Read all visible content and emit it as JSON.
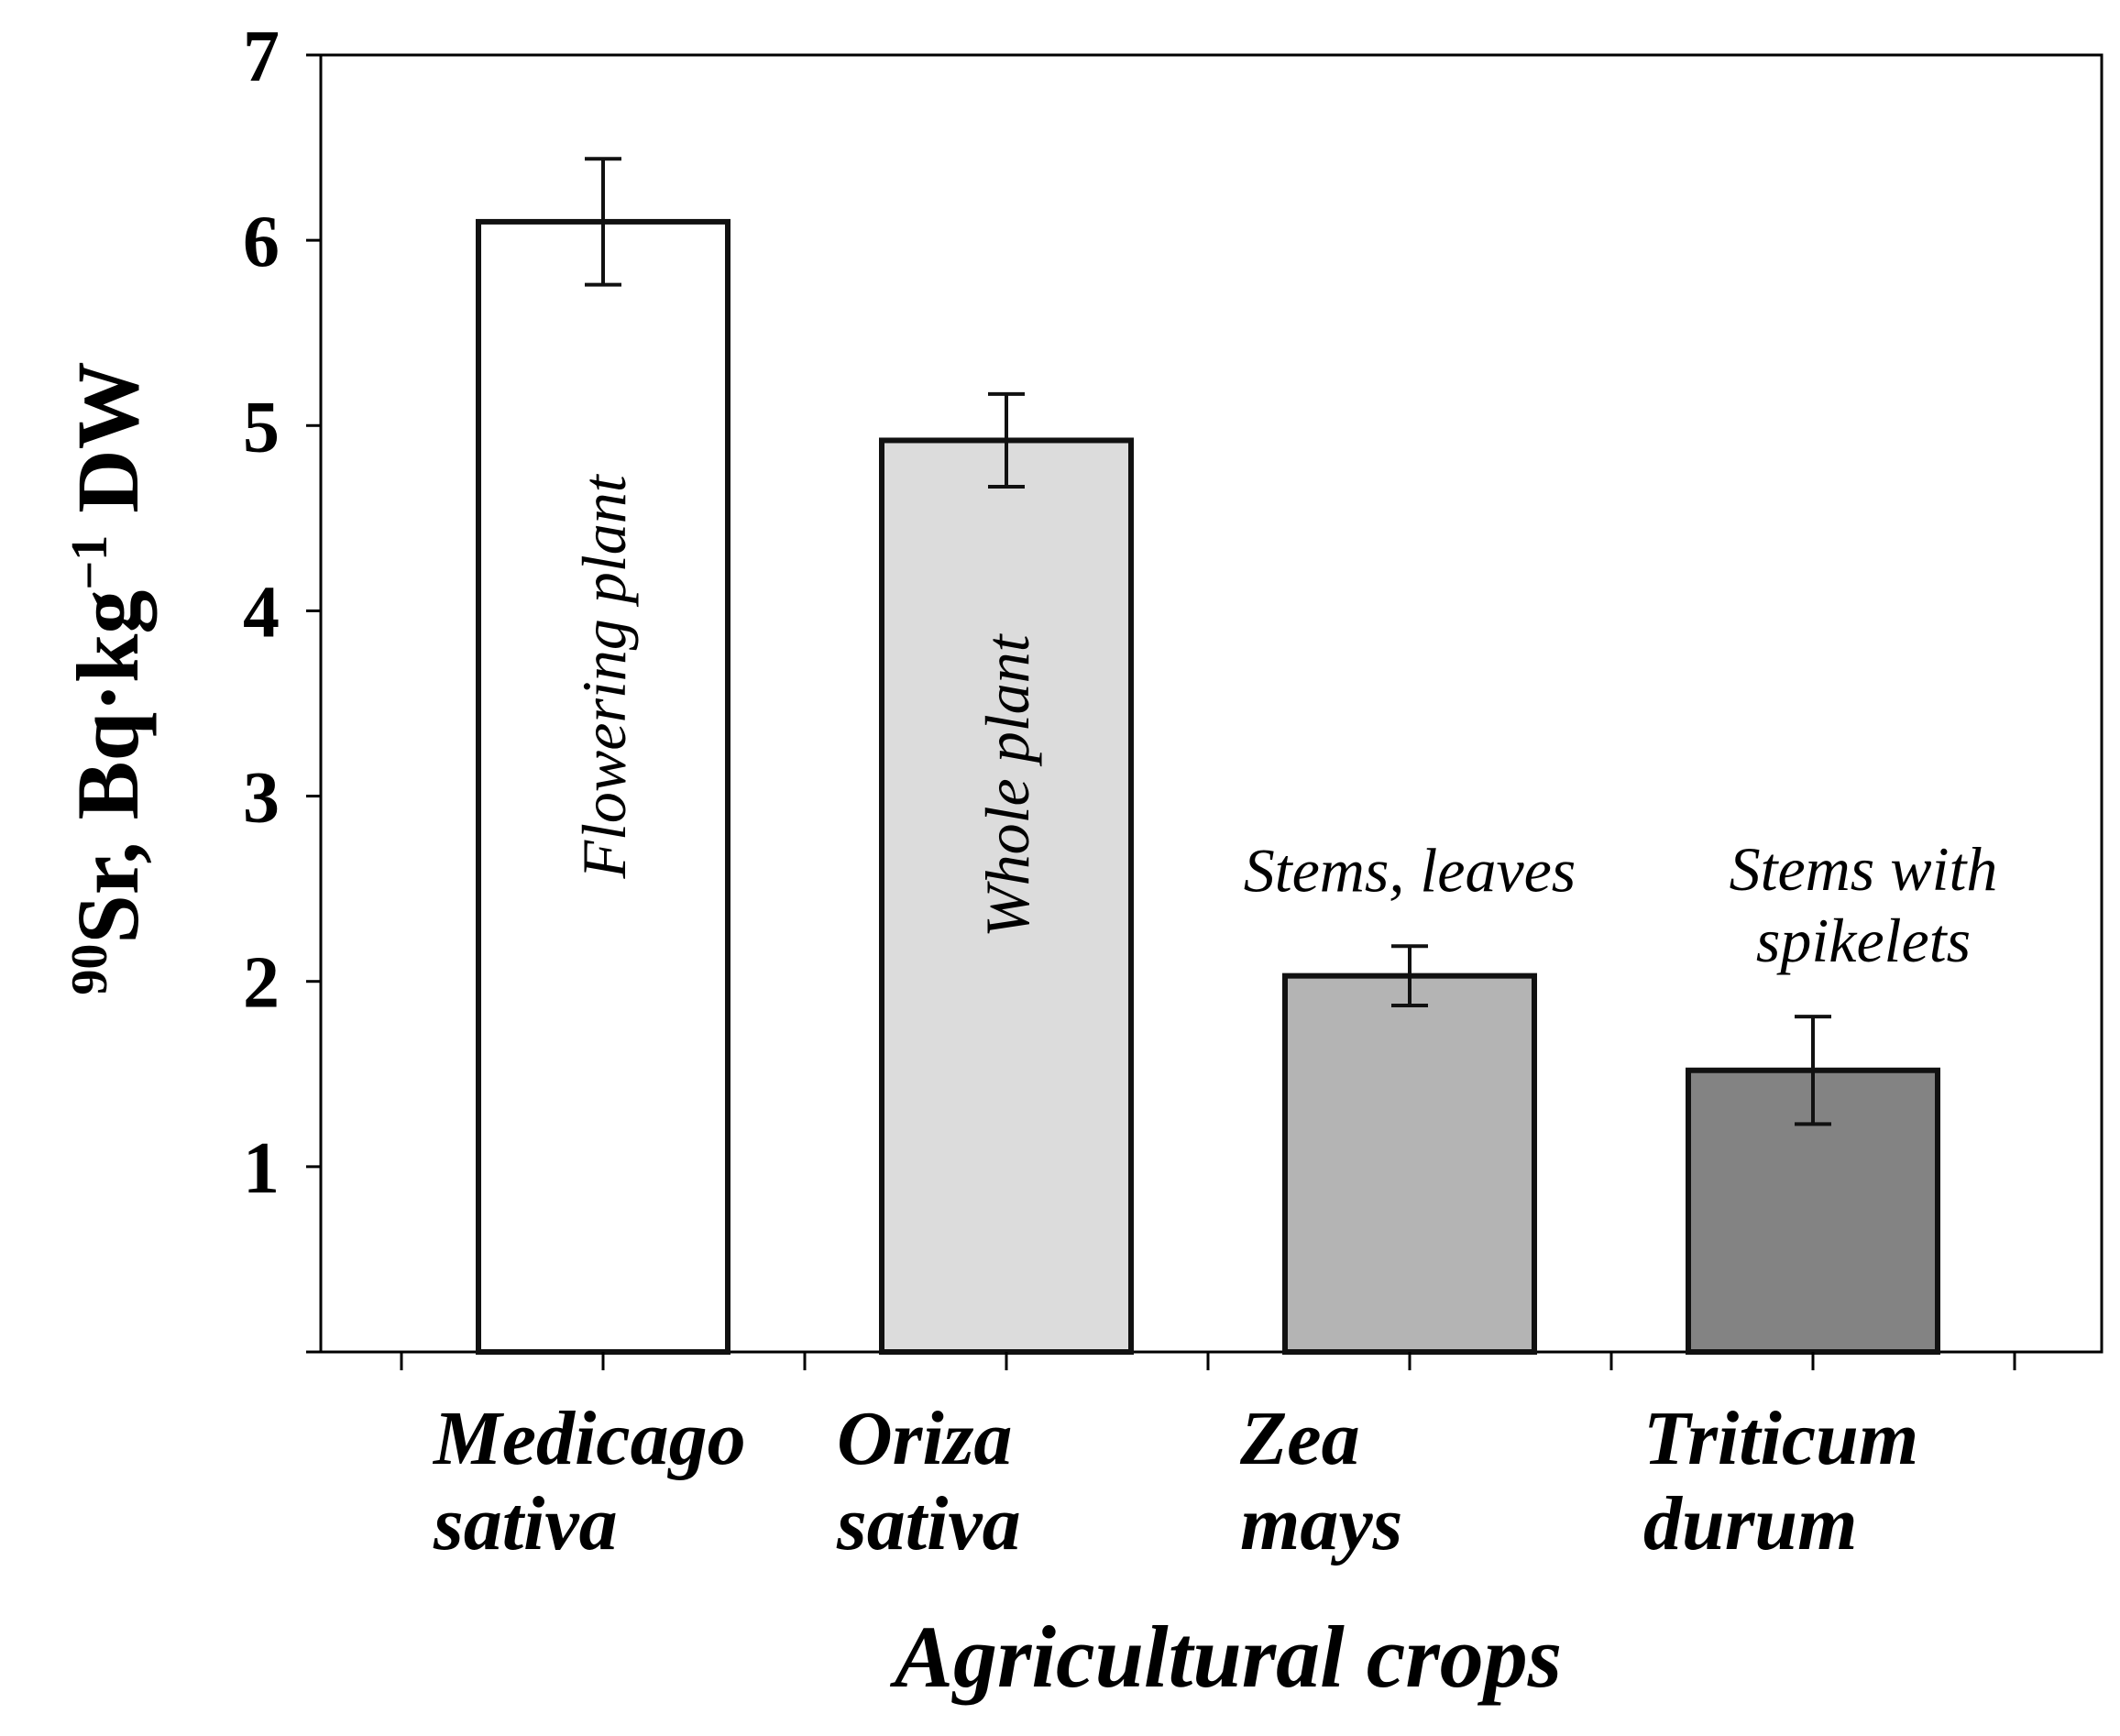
{
  "chart_data": {
    "type": "bar",
    "categories": [
      [
        "Medicago",
        "sativa"
      ],
      [
        "Oriza",
        "sativa"
      ],
      [
        "Zea",
        "mays"
      ],
      [
        "Triticum",
        "durum"
      ]
    ],
    "values": [
      6.1,
      4.92,
      2.03,
      1.52
    ],
    "errors": [
      0.34,
      0.25,
      0.16,
      0.29
    ],
    "bar_colors": [
      "#ffffff",
      "#dcdcdc",
      "#b4b4b4",
      "#838383"
    ],
    "annotations": [
      {
        "text": "Flowering plant",
        "placement": "inside-vertical"
      },
      {
        "text": "Whole plant",
        "placement": "inside-vertical"
      },
      {
        "text": "Stems, leaves",
        "placement": "above"
      },
      {
        "text": "Stems with spikelets",
        "lines": [
          "Stems with",
          "spikelets"
        ],
        "placement": "above"
      }
    ],
    "title": "",
    "xlabel": "Agricultural crops",
    "ylabel": {
      "sup": "90",
      "main": "Sr, Bq·kg",
      "sup2": "−1",
      "tail": " DW"
    },
    "ylim": [
      0,
      7
    ],
    "yticks": [
      1,
      2,
      3,
      4,
      5,
      6,
      7
    ],
    "grid": false,
    "legend": "none"
  }
}
